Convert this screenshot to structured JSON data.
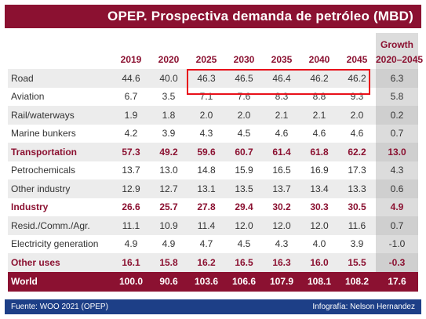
{
  "title": "OPEP. Prospectiva demanda de petróleo (MBD)",
  "columns": {
    "years": [
      "2019",
      "2020",
      "2025",
      "2030",
      "2035",
      "2040",
      "2045"
    ],
    "growth_label": "Growth",
    "growth_period": "2020–2045"
  },
  "rows": [
    {
      "label": "Road",
      "values": [
        "44.6",
        "40.0",
        "46.3",
        "46.5",
        "46.4",
        "46.2",
        "46.2"
      ],
      "growth": "6.3"
    },
    {
      "label": "Aviation",
      "values": [
        "6.7",
        "3.5",
        "7.1",
        "7.6",
        "8.3",
        "8.8",
        "9.3"
      ],
      "growth": "5.8"
    },
    {
      "label": "Rail/waterways",
      "values": [
        "1.9",
        "1.8",
        "2.0",
        "2.0",
        "2.1",
        "2.1",
        "2.0"
      ],
      "growth": "0.2"
    },
    {
      "label": "Marine bunkers",
      "values": [
        "4.2",
        "3.9",
        "4.3",
        "4.5",
        "4.6",
        "4.6",
        "4.6"
      ],
      "growth": "0.7"
    },
    {
      "label": "Transportation",
      "values": [
        "57.3",
        "49.2",
        "59.6",
        "60.7",
        "61.4",
        "61.8",
        "62.2"
      ],
      "growth": "13.0"
    },
    {
      "label": "Petrochemicals",
      "values": [
        "13.7",
        "13.0",
        "14.8",
        "15.9",
        "16.5",
        "16.9",
        "17.3"
      ],
      "growth": "4.3"
    },
    {
      "label": "Other industry",
      "values": [
        "12.9",
        "12.7",
        "13.1",
        "13.5",
        "13.7",
        "13.4",
        "13.3"
      ],
      "growth": "0.6"
    },
    {
      "label": "Industry",
      "values": [
        "26.6",
        "25.7",
        "27.8",
        "29.4",
        "30.2",
        "30.3",
        "30.5"
      ],
      "growth": "4.9"
    },
    {
      "label": "Resid./Comm./Agr.",
      "values": [
        "11.1",
        "10.9",
        "11.4",
        "12.0",
        "12.0",
        "12.0",
        "11.6"
      ],
      "growth": "0.7"
    },
    {
      "label": "Electricity generation",
      "values": [
        "4.9",
        "4.9",
        "4.7",
        "4.5",
        "4.3",
        "4.0",
        "3.9"
      ],
      "growth": "-1.0"
    },
    {
      "label": "Other uses",
      "values": [
        "16.1",
        "15.8",
        "16.2",
        "16.5",
        "16.3",
        "16.0",
        "15.5"
      ],
      "growth": "-0.3"
    },
    {
      "label": "World",
      "values": [
        "100.0",
        "90.6",
        "103.6",
        "106.6",
        "107.9",
        "108.1",
        "108.2"
      ],
      "growth": "17.6"
    }
  ],
  "footer": {
    "source": "Fuente: WOO 2021 (OPEP)",
    "credit": "Infografía: Nelson Hernandez"
  },
  "colors": {
    "accent": "#8b1131",
    "footer": "#1d3f87",
    "highlight": "#e8101a"
  }
}
